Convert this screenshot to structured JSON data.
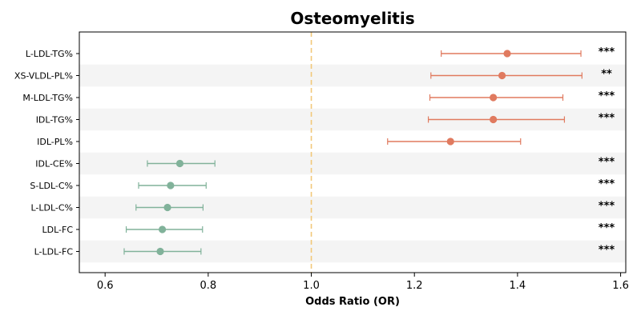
{
  "chart_data": {
    "type": "forest",
    "title": "Osteomyelitis",
    "xlabel": "Odds Ratio (OR)",
    "ylabel": "",
    "xlim": [
      0.55,
      1.61
    ],
    "xticks": [
      "0.6",
      "0.8",
      "1.0",
      "1.2",
      "1.4",
      "1.6"
    ],
    "xtick_values": [
      0.6,
      0.8,
      1.0,
      1.2,
      1.4,
      1.6
    ],
    "reference_line": 1.0,
    "grid": false,
    "row_banding": true,
    "colors": {
      "risk": "#e07a5f",
      "protective": "#81b29a",
      "reference": "#f2c879",
      "band": "#f4f4f4"
    },
    "rows": [
      {
        "label": "L-LDL-TG%",
        "or": 1.38,
        "ci": [
          1.252,
          1.523
        ],
        "sig": "***"
      },
      {
        "label": "XS-VLDL-PL%",
        "or": 1.37,
        "ci": [
          1.232,
          1.525
        ],
        "sig": "**"
      },
      {
        "label": "M-LDL-TG%",
        "or": 1.353,
        "ci": [
          1.23,
          1.488
        ],
        "sig": "***"
      },
      {
        "label": "IDL-TG%",
        "or": 1.353,
        "ci": [
          1.227,
          1.491
        ],
        "sig": "***"
      },
      {
        "label": "IDL-PL%",
        "or": 1.27,
        "ci": [
          1.148,
          1.406
        ],
        "sig": ""
      },
      {
        "label": "IDL-CE%",
        "or": 0.745,
        "ci": [
          0.682,
          0.813
        ],
        "sig": "***"
      },
      {
        "label": "S-LDL-C%",
        "or": 0.727,
        "ci": [
          0.665,
          0.796
        ],
        "sig": "***"
      },
      {
        "label": "L-LDL-C%",
        "or": 0.721,
        "ci": [
          0.66,
          0.79
        ],
        "sig": "***"
      },
      {
        "label": "LDL-FC",
        "or": 0.711,
        "ci": [
          0.641,
          0.789
        ],
        "sig": "***"
      },
      {
        "label": "L-LDL-FC",
        "or": 0.707,
        "ci": [
          0.637,
          0.786
        ],
        "sig": "***"
      }
    ]
  }
}
